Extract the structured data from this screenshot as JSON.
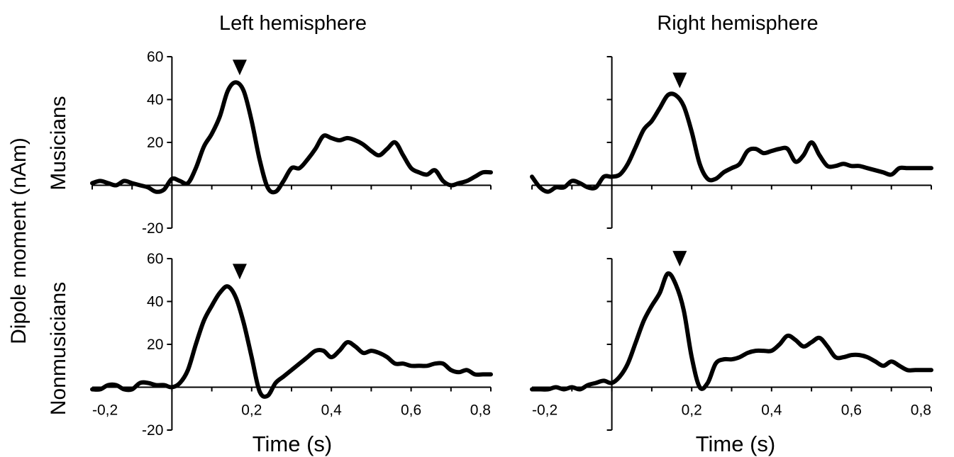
{
  "figure": {
    "ylabel": "Dipole moment (nAm)",
    "xlabel": "Time (s)",
    "columns": [
      "Left hemisphere",
      "Right hemisphere"
    ],
    "rows": [
      "Musicians",
      "Nonmusicians"
    ]
  },
  "chart_data": [
    {
      "type": "line",
      "row": "Musicians",
      "column": "Left hemisphere",
      "xlim": [
        -0.2,
        0.8
      ],
      "ylim": [
        -20,
        60
      ],
      "yticks": [
        "60",
        "40",
        "20",
        "-20"
      ],
      "peak_marker_x": 0.17,
      "x": [
        -0.2,
        -0.18,
        -0.16,
        -0.14,
        -0.12,
        -0.1,
        -0.08,
        -0.06,
        -0.04,
        -0.02,
        0,
        0.02,
        0.04,
        0.06,
        0.08,
        0.1,
        0.12,
        0.14,
        0.16,
        0.18,
        0.2,
        0.22,
        0.24,
        0.26,
        0.28,
        0.3,
        0.32,
        0.34,
        0.36,
        0.38,
        0.4,
        0.42,
        0.44,
        0.46,
        0.48,
        0.5,
        0.52,
        0.54,
        0.56,
        0.58,
        0.6,
        0.62,
        0.64,
        0.66,
        0.68,
        0.7,
        0.72,
        0.74,
        0.76,
        0.78,
        0.8
      ],
      "y": [
        1,
        2,
        1,
        0,
        2,
        1,
        0,
        -1,
        -3,
        -2,
        3,
        2,
        1,
        8,
        18,
        24,
        32,
        44,
        48,
        44,
        30,
        12,
        -1,
        -3,
        2,
        8,
        8,
        12,
        17,
        23,
        22,
        21,
        22,
        21,
        19,
        16,
        14,
        17,
        20,
        14,
        8,
        6,
        5,
        7,
        2,
        0,
        1,
        2,
        4,
        6,
        6
      ]
    },
    {
      "type": "line",
      "row": "Musicians",
      "column": "Right hemisphere",
      "xlim": [
        -0.2,
        0.8
      ],
      "ylim": [
        -20,
        60
      ],
      "yticks": [],
      "peak_marker_x": 0.17,
      "x": [
        -0.2,
        -0.18,
        -0.16,
        -0.14,
        -0.12,
        -0.1,
        -0.08,
        -0.06,
        -0.04,
        -0.02,
        0,
        0.02,
        0.04,
        0.06,
        0.08,
        0.1,
        0.12,
        0.14,
        0.16,
        0.18,
        0.2,
        0.22,
        0.24,
        0.26,
        0.28,
        0.3,
        0.32,
        0.34,
        0.36,
        0.38,
        0.4,
        0.42,
        0.44,
        0.46,
        0.48,
        0.5,
        0.52,
        0.54,
        0.56,
        0.58,
        0.6,
        0.62,
        0.64,
        0.66,
        0.68,
        0.7,
        0.72,
        0.74,
        0.76,
        0.78,
        0.8
      ],
      "y": [
        4,
        -1,
        -3,
        -1,
        -1,
        2,
        1,
        -1,
        -1,
        4,
        4,
        5,
        10,
        18,
        26,
        30,
        36,
        42,
        42,
        37,
        25,
        10,
        3,
        3,
        6,
        8,
        10,
        16,
        17,
        15,
        16,
        17,
        17,
        11,
        14,
        20,
        14,
        9,
        9,
        10,
        9,
        9,
        8,
        7,
        6,
        5,
        8,
        8,
        8,
        8,
        8
      ]
    },
    {
      "type": "line",
      "row": "Nonmusicians",
      "column": "Left hemisphere",
      "xlim": [
        -0.2,
        0.8
      ],
      "ylim": [
        -20,
        60
      ],
      "yticks": [
        "60",
        "40",
        "20",
        "-20"
      ],
      "x_tick_labels": [
        "-0,2",
        "0,2",
        "0,4",
        "0,6",
        "0,8"
      ],
      "peak_marker_x": 0.17,
      "x": [
        -0.2,
        -0.18,
        -0.16,
        -0.14,
        -0.12,
        -0.1,
        -0.08,
        -0.06,
        -0.04,
        -0.02,
        0,
        0.02,
        0.04,
        0.06,
        0.08,
        0.1,
        0.12,
        0.14,
        0.16,
        0.18,
        0.2,
        0.22,
        0.24,
        0.26,
        0.28,
        0.3,
        0.32,
        0.34,
        0.36,
        0.38,
        0.4,
        0.42,
        0.44,
        0.46,
        0.48,
        0.5,
        0.52,
        0.54,
        0.56,
        0.58,
        0.6,
        0.62,
        0.64,
        0.66,
        0.68,
        0.7,
        0.72,
        0.74,
        0.76,
        0.78,
        0.8
      ],
      "y": [
        -1,
        -1,
        1,
        1,
        -1,
        -1,
        2,
        2,
        1,
        1,
        0,
        2,
        8,
        20,
        31,
        38,
        44,
        47,
        42,
        30,
        14,
        -2,
        -4,
        2,
        5,
        8,
        11,
        14,
        17,
        17,
        14,
        17,
        21,
        19,
        16,
        17,
        16,
        14,
        11,
        11,
        10,
        10,
        10,
        11,
        11,
        8,
        7,
        8,
        6,
        6,
        6
      ]
    },
    {
      "type": "line",
      "row": "Nonmusicians",
      "column": "Right hemisphere",
      "xlim": [
        -0.2,
        0.8
      ],
      "ylim": [
        -20,
        60
      ],
      "yticks": [],
      "x_tick_labels": [
        "-0,2",
        "0,2",
        "0,4",
        "0,6",
        "0,8"
      ],
      "peak_marker_x": 0.17,
      "x": [
        -0.2,
        -0.18,
        -0.16,
        -0.14,
        -0.12,
        -0.1,
        -0.08,
        -0.06,
        -0.04,
        -0.02,
        0,
        0.02,
        0.04,
        0.06,
        0.08,
        0.1,
        0.12,
        0.14,
        0.16,
        0.18,
        0.2,
        0.22,
        0.24,
        0.26,
        0.28,
        0.3,
        0.32,
        0.34,
        0.36,
        0.38,
        0.4,
        0.42,
        0.44,
        0.46,
        0.48,
        0.5,
        0.52,
        0.54,
        0.56,
        0.58,
        0.6,
        0.62,
        0.64,
        0.66,
        0.68,
        0.7,
        0.72,
        0.74,
        0.76,
        0.78,
        0.8
      ],
      "y": [
        -1,
        -1,
        -1,
        0,
        -1,
        0,
        -1,
        1,
        2,
        3,
        2,
        5,
        11,
        21,
        31,
        38,
        44,
        53,
        48,
        36,
        14,
        0,
        2,
        11,
        13,
        13,
        14,
        16,
        17,
        17,
        17,
        20,
        24,
        22,
        19,
        21,
        23,
        19,
        14,
        14,
        15,
        15,
        14,
        12,
        10,
        12,
        10,
        8,
        8,
        8,
        8
      ]
    }
  ]
}
